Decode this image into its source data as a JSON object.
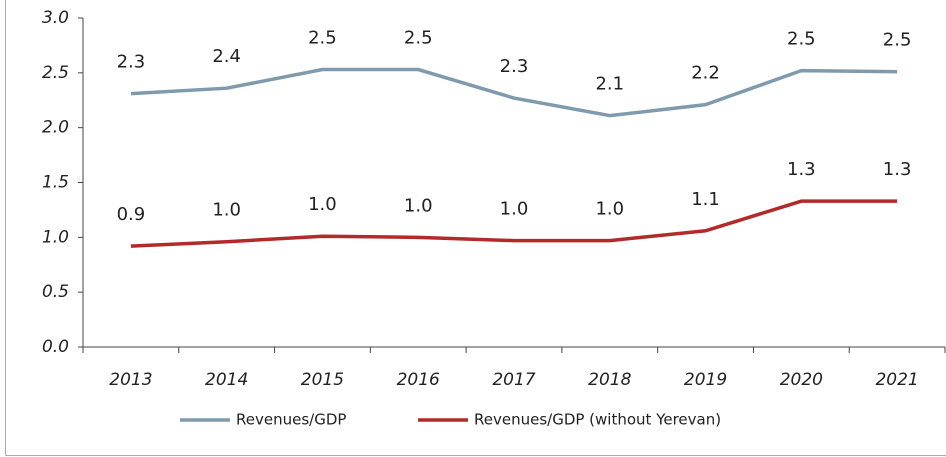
{
  "chart_data": {
    "type": "line",
    "categories": [
      "2013",
      "2014",
      "2015",
      "2016",
      "2017",
      "2018",
      "2019",
      "2020",
      "2021"
    ],
    "series": [
      {
        "name": "Revenues/GDP",
        "color": "#7f9aad",
        "values": [
          2.31,
          2.36,
          2.53,
          2.53,
          2.27,
          2.11,
          2.21,
          2.52,
          2.51
        ],
        "value_labels": [
          "2.3",
          "2.4",
          "2.5",
          "2.5",
          "2.3",
          "2.1",
          "2.2",
          "2.5",
          "2.5"
        ]
      },
      {
        "name": "Revenues/GDP (without Yerevan)",
        "color": "#b22a2a",
        "values": [
          0.92,
          0.96,
          1.01,
          1.0,
          0.97,
          0.97,
          1.06,
          1.33,
          1.33
        ],
        "value_labels": [
          "0.9",
          "1.0",
          "1.0",
          "1.0",
          "1.0",
          "1.0",
          "1.1",
          "1.3",
          "1.3"
        ]
      }
    ],
    "ylim": [
      0,
      3
    ],
    "yticks": [
      {
        "value": 0,
        "label": "0.0"
      },
      0.5,
      {
        "value": 1,
        "label": "1.0"
      },
      1.5,
      {
        "value": 2,
        "label": "2.0"
      },
      2.5,
      {
        "value": 3,
        "label": "3.0"
      }
    ],
    "grid": false,
    "legend": "bottom"
  }
}
